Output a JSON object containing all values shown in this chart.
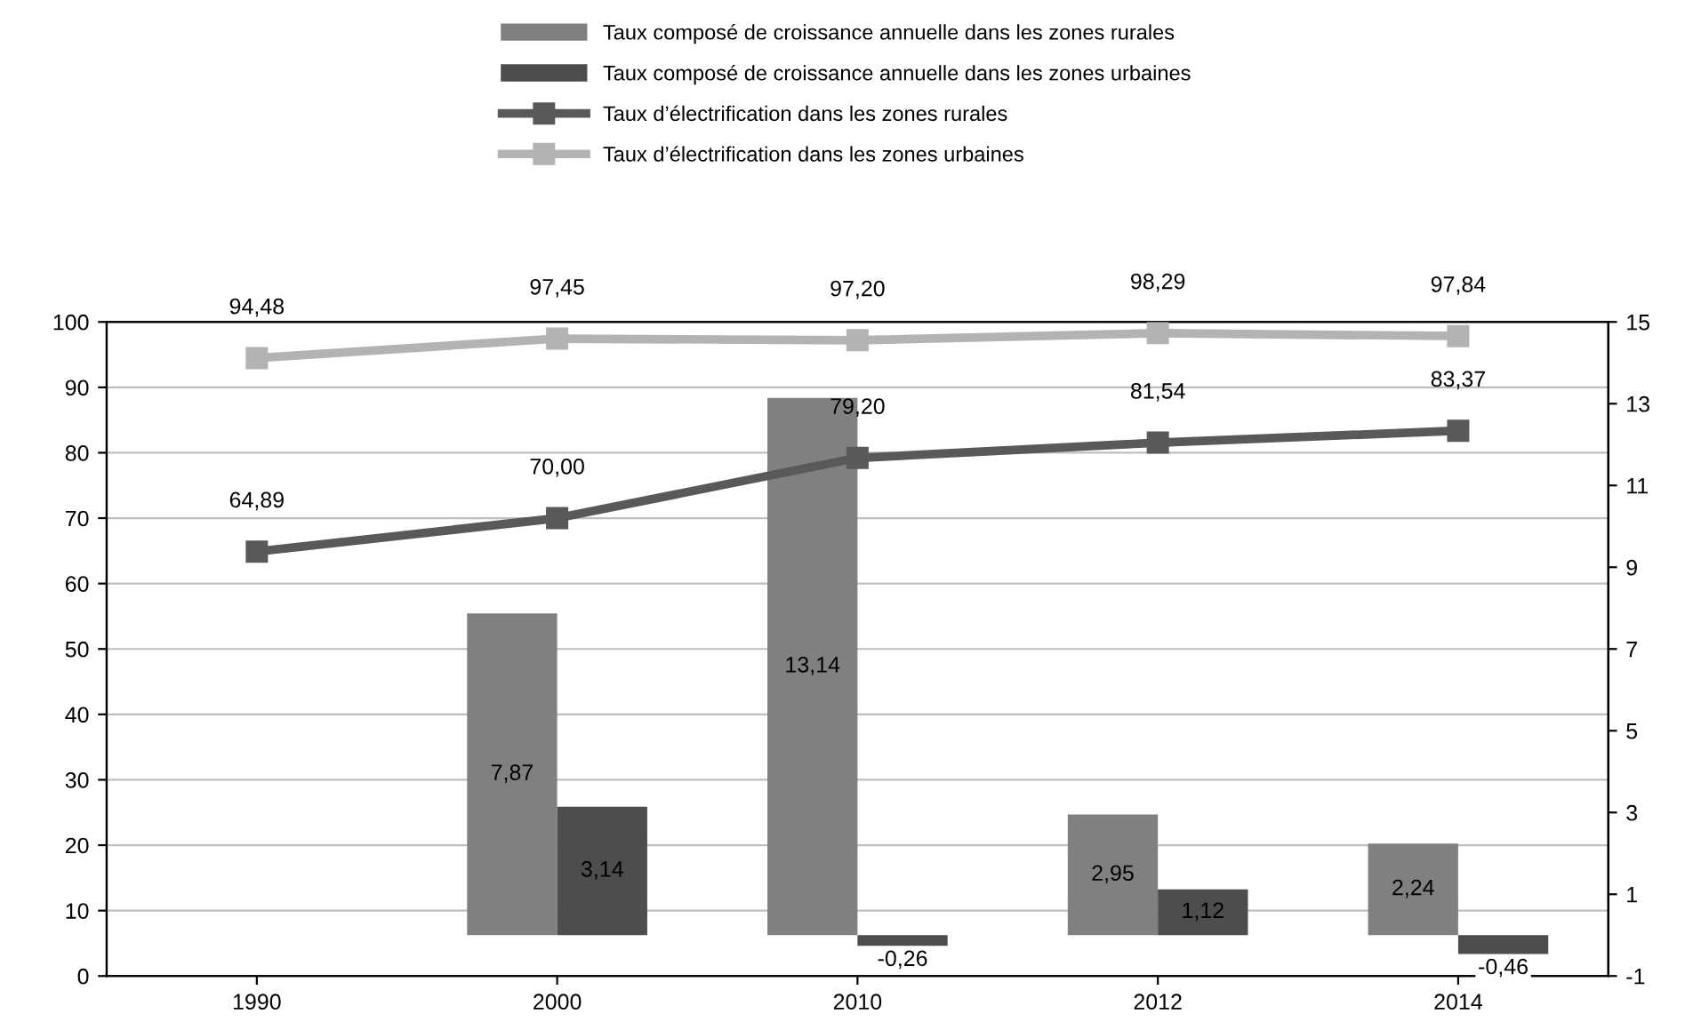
{
  "chart_data": {
    "type": "bar",
    "categories": [
      "1990",
      "2000",
      "2010",
      "2012",
      "2014"
    ],
    "series": [
      {
        "name": "Taux composé de croissance annuelle dans les zones rurales",
        "type": "bar",
        "axis": "y2",
        "color": "#808080",
        "values": [
          null,
          7.87,
          13.14,
          2.95,
          2.24
        ],
        "value_labels": [
          null,
          "7,87",
          "13,14",
          "2,95",
          "2,24"
        ]
      },
      {
        "name": "Taux composé de croissance annuelle dans les zones urbaines",
        "type": "bar",
        "axis": "y2",
        "color": "#4d4d4d",
        "values": [
          null,
          3.14,
          -0.26,
          1.12,
          -0.46
        ],
        "value_labels": [
          null,
          "3,14",
          "-0,26",
          "1,12",
          "-0,46"
        ]
      },
      {
        "name": "Taux d’électrification dans les zones rurales",
        "type": "line",
        "color": "#595959",
        "marker": "square",
        "values": [
          64.89,
          70.0,
          79.2,
          81.54,
          83.37
        ],
        "value_labels": [
          "64,89",
          "70,00",
          "79,20",
          "81,54",
          "83,37"
        ]
      },
      {
        "name": "Taux d’électrification dans les zones urbaines",
        "type": "line",
        "color": "#b3b3b3",
        "marker": "square",
        "values": [
          94.48,
          97.45,
          97.2,
          98.29,
          97.84
        ],
        "value_labels": [
          "94,48",
          "97,45",
          "97,20",
          "98,29",
          "97,84"
        ]
      }
    ],
    "ylim": [
      0,
      100
    ],
    "yticks": [
      0,
      10,
      20,
      30,
      40,
      50,
      60,
      70,
      80,
      90,
      100
    ],
    "y2lim": [
      -1,
      15
    ],
    "y2ticks": [
      -1,
      1,
      3,
      5,
      7,
      9,
      11,
      13,
      15
    ],
    "grid": "y",
    "legend": "top"
  }
}
